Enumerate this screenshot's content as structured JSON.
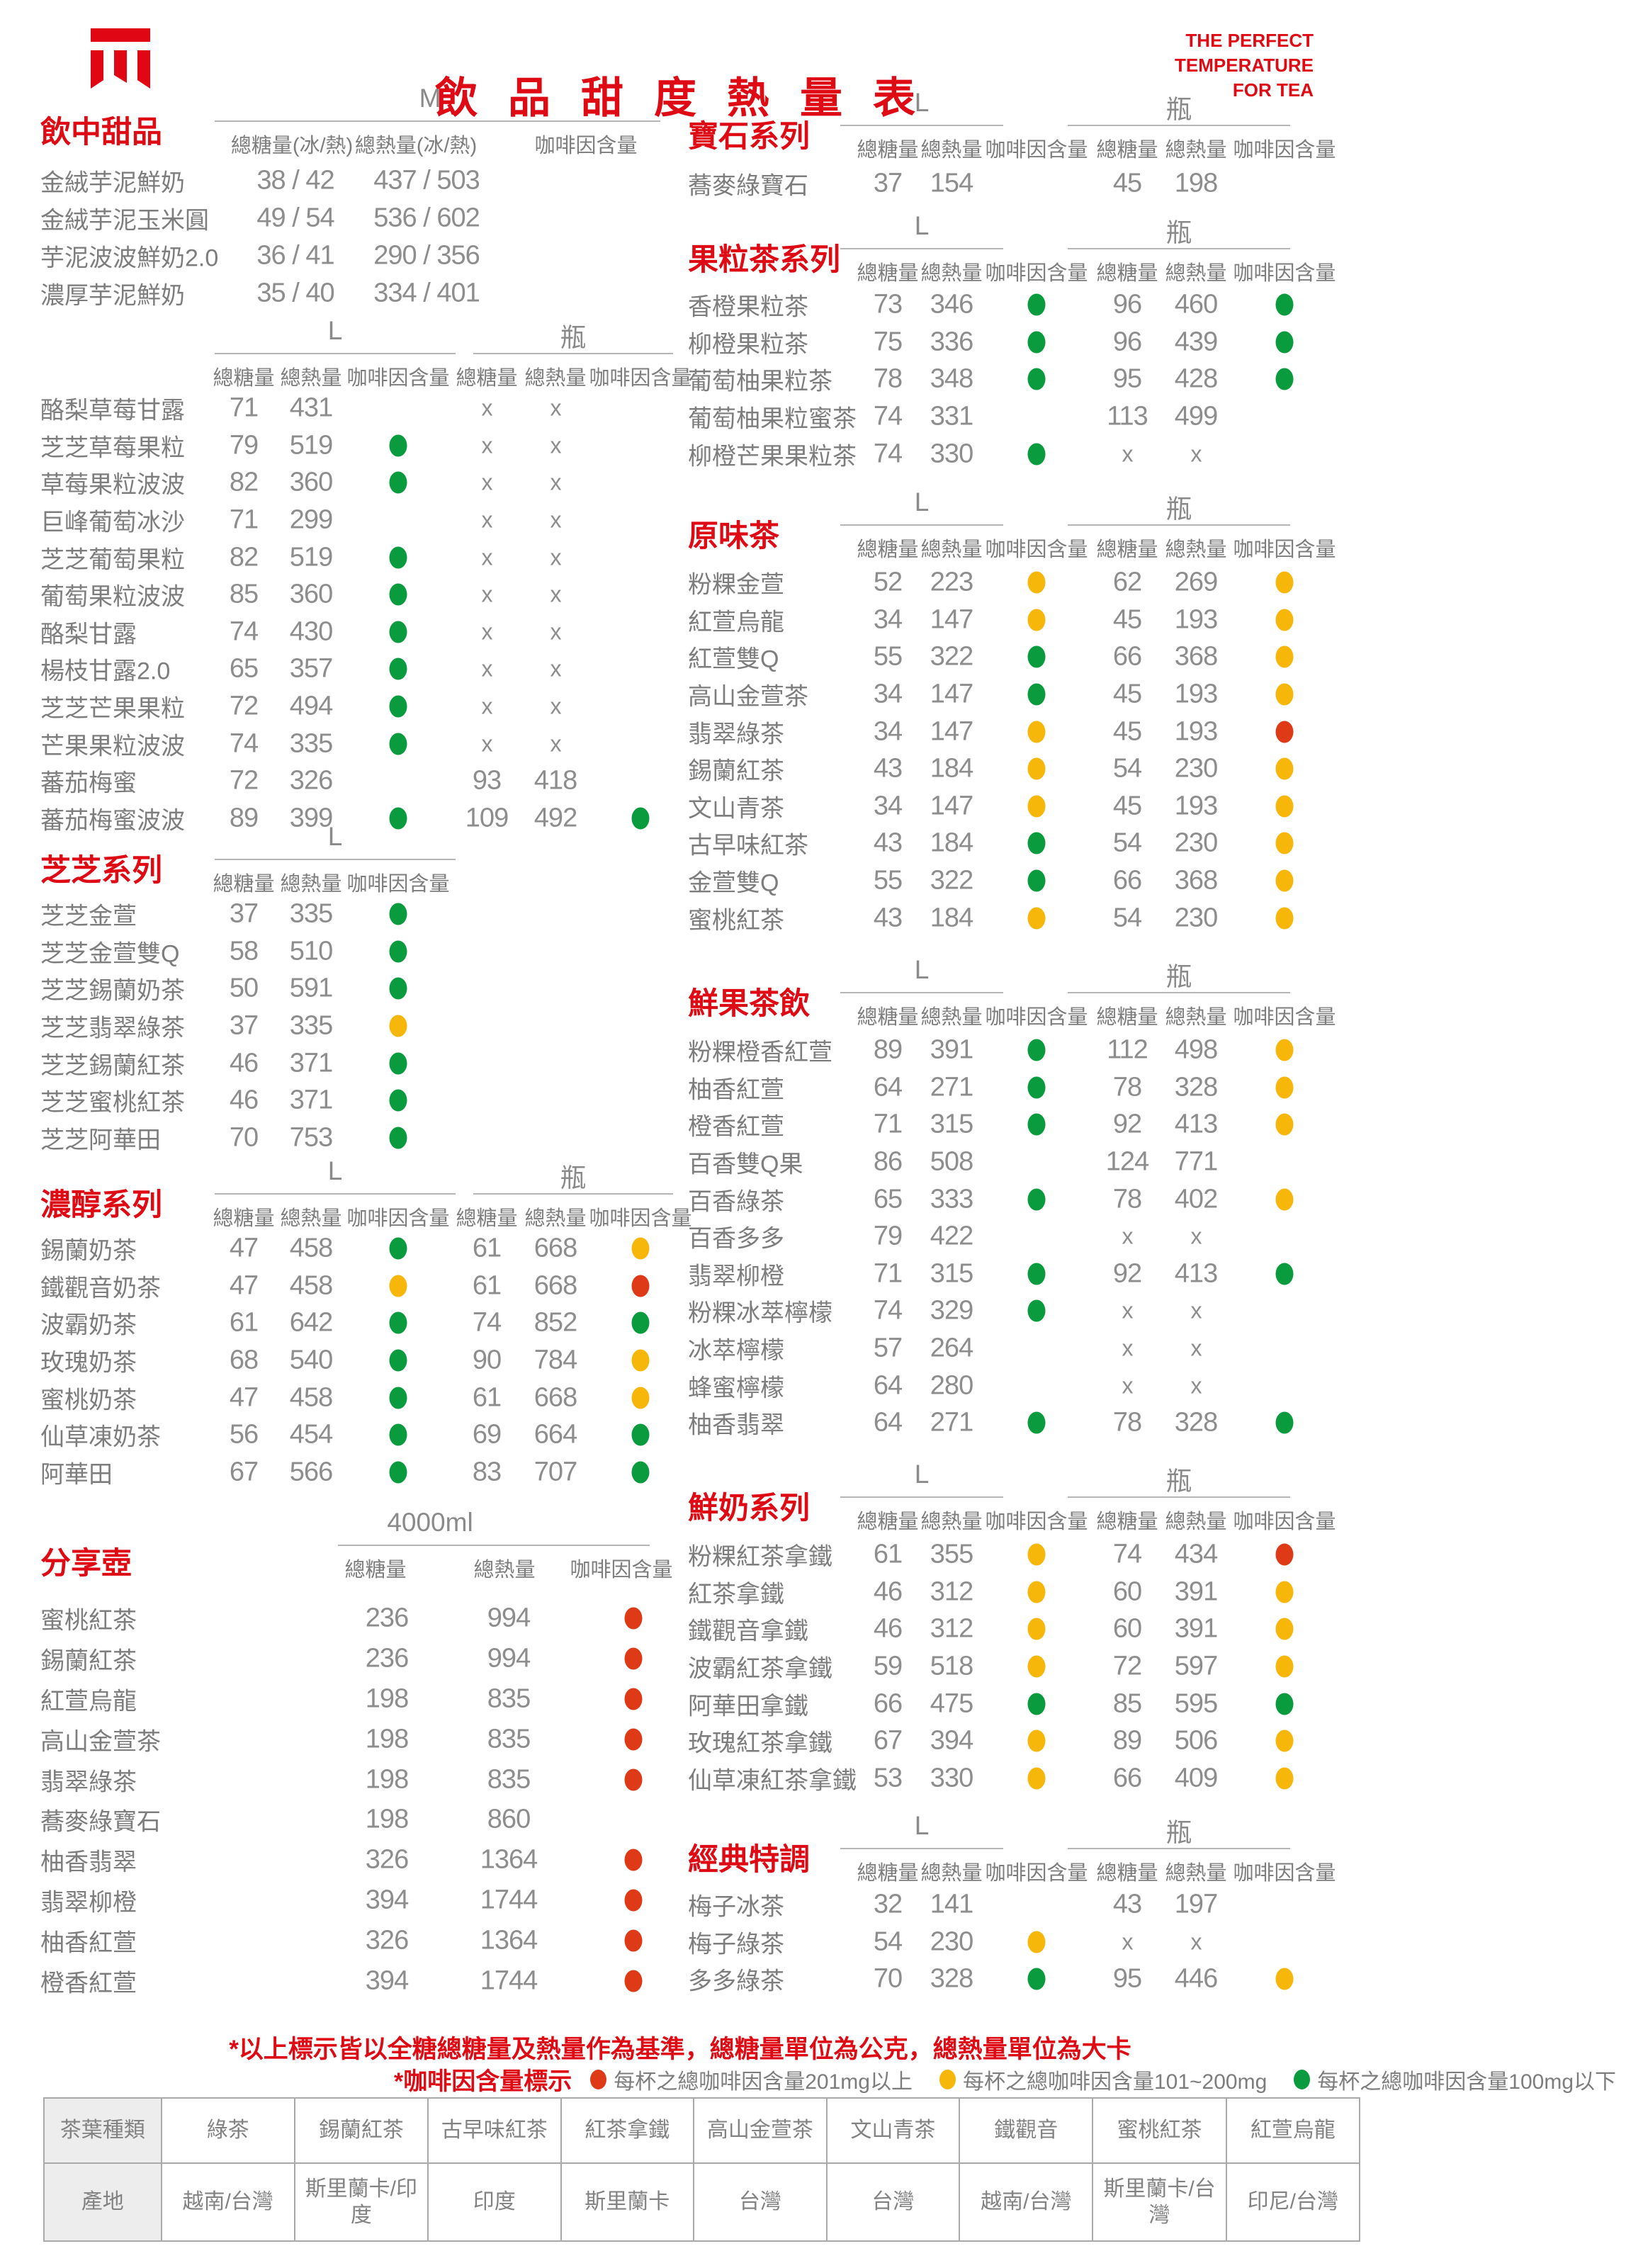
{
  "page": {
    "title": "飲 品 甜 度 熱 量 表",
    "tagline_lines": [
      "THE PERFECT",
      "TEMPERATURE",
      "FOR TEA"
    ],
    "logo_name": "tea-brand-logo"
  },
  "colors": {
    "brand_red": "#de0a14",
    "caffeine_green": "#0a9b3e",
    "caffeine_yellow": "#f6b60a",
    "caffeine_red": "#de3a17",
    "text_gray": "#7d7d7d",
    "value_gray": "#8d8d8d"
  },
  "labels": {
    "sugar": "總糖量",
    "cal": "總熱量",
    "caffeine": "咖啡因含量"
  },
  "left_sections": [
    {
      "id": "drink-desserts",
      "title": "飲中甜品",
      "size_label": "M",
      "columns": [
        "總糖量(冰/熱)",
        "總熱量(冰/熱)",
        "咖啡因含量"
      ],
      "rows": [
        {
          "name": "金絨芋泥鮮奶",
          "cells": [
            "38 / 42",
            "437 / 503",
            ""
          ]
        },
        {
          "name": "金絨芋泥玉米圓",
          "cells": [
            "49 / 54",
            "536 / 602",
            ""
          ]
        },
        {
          "name": "芋泥波波鮮奶2.0",
          "cells": [
            "36 / 41",
            "290 / 356",
            ""
          ]
        },
        {
          "name": "濃厚芋泥鮮奶",
          "cells": [
            "35 / 40",
            "334 / 401",
            ""
          ]
        }
      ]
    },
    {
      "id": "fruit-dew-series",
      "title": "",
      "size_label": "",
      "rows": [
        {
          "name": "酪梨草莓甘露",
          "cells": [
            "71",
            "431",
            "",
            "x",
            "x",
            ""
          ]
        },
        {
          "name": "芝芝草莓果粒",
          "cells": [
            "79",
            "519",
            "dot:green",
            "x",
            "x",
            ""
          ]
        },
        {
          "name": "草莓果粒波波",
          "cells": [
            "82",
            "360",
            "dot:green",
            "x",
            "x",
            ""
          ]
        },
        {
          "name": "巨峰葡萄冰沙",
          "cells": [
            "71",
            "299",
            "",
            "x",
            "x",
            ""
          ]
        },
        {
          "name": "芝芝葡萄果粒",
          "cells": [
            "82",
            "519",
            "dot:green",
            "x",
            "x",
            ""
          ]
        },
        {
          "name": "葡萄果粒波波",
          "cells": [
            "85",
            "360",
            "dot:green",
            "x",
            "x",
            ""
          ]
        },
        {
          "name": "酪梨甘露",
          "cells": [
            "74",
            "430",
            "dot:green",
            "x",
            "x",
            ""
          ]
        },
        {
          "name": "楊枝甘露2.0",
          "cells": [
            "65",
            "357",
            "dot:green",
            "x",
            "x",
            ""
          ]
        },
        {
          "name": "芝芝芒果果粒",
          "cells": [
            "72",
            "494",
            "dot:green",
            "x",
            "x",
            ""
          ]
        },
        {
          "name": "芒果果粒波波",
          "cells": [
            "74",
            "335",
            "dot:green",
            "x",
            "x",
            ""
          ]
        },
        {
          "name": "蕃茄梅蜜",
          "cells": [
            "72",
            "326",
            "",
            "93",
            "418",
            ""
          ]
        },
        {
          "name": "蕃茄梅蜜波波",
          "cells": [
            "89",
            "399",
            "dot:green",
            "109",
            "492",
            "dot:green"
          ]
        }
      ]
    },
    {
      "id": "cheese-series",
      "title": "芝芝系列",
      "size_label": "L",
      "rows": [
        {
          "name": "芝芝金萱",
          "cells": [
            "37",
            "335",
            "dot:green"
          ]
        },
        {
          "name": "芝芝金萱雙Q",
          "cells": [
            "58",
            "510",
            "dot:green"
          ]
        },
        {
          "name": "芝芝錫蘭奶茶",
          "cells": [
            "50",
            "591",
            "dot:green"
          ]
        },
        {
          "name": "芝芝翡翠綠茶",
          "cells": [
            "37",
            "335",
            "dot:yellow"
          ]
        },
        {
          "name": "芝芝錫蘭紅茶",
          "cells": [
            "46",
            "371",
            "dot:green"
          ]
        },
        {
          "name": "芝芝蜜桃紅茶",
          "cells": [
            "46",
            "371",
            "dot:green"
          ]
        },
        {
          "name": "芝芝阿華田",
          "cells": [
            "70",
            "753",
            "dot:green"
          ]
        }
      ]
    },
    {
      "id": "rich-milk-tea-series",
      "title": "濃醇系列",
      "size_label": "",
      "rows": [
        {
          "name": "錫蘭奶茶",
          "cells": [
            "47",
            "458",
            "dot:green",
            "61",
            "668",
            "dot:yellow"
          ]
        },
        {
          "name": "鐵觀音奶茶",
          "cells": [
            "47",
            "458",
            "dot:yellow",
            "61",
            "668",
            "dot:red"
          ]
        },
        {
          "name": "波霸奶茶",
          "cells": [
            "61",
            "642",
            "dot:green",
            "74",
            "852",
            "dot:green"
          ]
        },
        {
          "name": "玫瑰奶茶",
          "cells": [
            "68",
            "540",
            "dot:green",
            "90",
            "784",
            "dot:yellow"
          ]
        },
        {
          "name": "蜜桃奶茶",
          "cells": [
            "47",
            "458",
            "dot:green",
            "61",
            "668",
            "dot:yellow"
          ]
        },
        {
          "name": "仙草凍奶茶",
          "cells": [
            "56",
            "454",
            "dot:green",
            "69",
            "664",
            "dot:green"
          ]
        },
        {
          "name": "阿華田",
          "cells": [
            "67",
            "566",
            "dot:green",
            "83",
            "707",
            "dot:green"
          ]
        }
      ]
    },
    {
      "id": "sharing-pot",
      "title": "分享壺",
      "size_label": "4000ml",
      "rows": [
        {
          "name": "蜜桃紅茶",
          "cells": [
            "236",
            "994",
            "dot:red"
          ]
        },
        {
          "name": "錫蘭紅茶",
          "cells": [
            "236",
            "994",
            "dot:red"
          ]
        },
        {
          "name": "紅萱烏龍",
          "cells": [
            "198",
            "835",
            "dot:red"
          ]
        },
        {
          "name": "高山金萱茶",
          "cells": [
            "198",
            "835",
            "dot:red"
          ]
        },
        {
          "name": "翡翠綠茶",
          "cells": [
            "198",
            "835",
            "dot:red"
          ]
        },
        {
          "name": "蕎麥綠寶石",
          "cells": [
            "198",
            "860",
            ""
          ]
        },
        {
          "name": "柚香翡翠",
          "cells": [
            "326",
            "1364",
            "dot:red"
          ]
        },
        {
          "name": "翡翠柳橙",
          "cells": [
            "394",
            "1744",
            "dot:red"
          ]
        },
        {
          "name": "柚香紅萱",
          "cells": [
            "326",
            "1364",
            "dot:red"
          ]
        },
        {
          "name": "橙香紅萱",
          "cells": [
            "394",
            "1744",
            "dot:red"
          ]
        }
      ]
    }
  ],
  "right_sections": [
    {
      "id": "gem-series",
      "title": "寶石系列",
      "size_label": "",
      "rows": [
        {
          "name": "蕎麥綠寶石",
          "cells": [
            "37",
            "154",
            "",
            "45",
            "198",
            ""
          ]
        }
      ]
    },
    {
      "id": "fruit-bits-tea-series",
      "title": "果粒茶系列",
      "size_label": "",
      "rows": [
        {
          "name": "香橙果粒茶",
          "cells": [
            "73",
            "346",
            "dot:green",
            "96",
            "460",
            "dot:green"
          ]
        },
        {
          "name": "柳橙果粒茶",
          "cells": [
            "75",
            "336",
            "dot:green",
            "96",
            "439",
            "dot:green"
          ]
        },
        {
          "name": "葡萄柚果粒茶",
          "cells": [
            "78",
            "348",
            "dot:green",
            "95",
            "428",
            "dot:green"
          ]
        },
        {
          "name": "葡萄柚果粒蜜茶",
          "cells": [
            "74",
            "331",
            "",
            "113",
            "499",
            ""
          ]
        },
        {
          "name": "柳橙芒果果粒茶",
          "cells": [
            "74",
            "330",
            "dot:green",
            "x",
            "x",
            ""
          ]
        }
      ]
    },
    {
      "id": "original-tea",
      "title": "原味茶",
      "size_label": "",
      "rows": [
        {
          "name": "粉粿金萱",
          "cells": [
            "52",
            "223",
            "dot:yellow",
            "62",
            "269",
            "dot:yellow"
          ]
        },
        {
          "name": "紅萱烏龍",
          "cells": [
            "34",
            "147",
            "dot:yellow",
            "45",
            "193",
            "dot:yellow"
          ]
        },
        {
          "name": "紅萱雙Q",
          "cells": [
            "55",
            "322",
            "dot:green",
            "66",
            "368",
            "dot:yellow"
          ]
        },
        {
          "name": "高山金萱茶",
          "cells": [
            "34",
            "147",
            "dot:green",
            "45",
            "193",
            "dot:yellow"
          ]
        },
        {
          "name": "翡翠綠茶",
          "cells": [
            "34",
            "147",
            "dot:yellow",
            "45",
            "193",
            "dot:red"
          ]
        },
        {
          "name": "錫蘭紅茶",
          "cells": [
            "43",
            "184",
            "dot:yellow",
            "54",
            "230",
            "dot:yellow"
          ]
        },
        {
          "name": "文山青茶",
          "cells": [
            "34",
            "147",
            "dot:yellow",
            "45",
            "193",
            "dot:yellow"
          ]
        },
        {
          "name": "古早味紅茶",
          "cells": [
            "43",
            "184",
            "dot:green",
            "54",
            "230",
            "dot:yellow"
          ]
        },
        {
          "name": "金萱雙Q",
          "cells": [
            "55",
            "322",
            "dot:green",
            "66",
            "368",
            "dot:yellow"
          ]
        },
        {
          "name": "蜜桃紅茶",
          "cells": [
            "43",
            "184",
            "dot:yellow",
            "54",
            "230",
            "dot:yellow"
          ]
        }
      ]
    },
    {
      "id": "fresh-fruit-tea",
      "title": "鮮果茶飲",
      "size_label": "",
      "rows": [
        {
          "name": "粉粿橙香紅萱",
          "cells": [
            "89",
            "391",
            "dot:green",
            "112",
            "498",
            "dot:yellow"
          ]
        },
        {
          "name": "柚香紅萱",
          "cells": [
            "64",
            "271",
            "dot:green",
            "78",
            "328",
            "dot:yellow"
          ]
        },
        {
          "name": "橙香紅萱",
          "cells": [
            "71",
            "315",
            "dot:green",
            "92",
            "413",
            "dot:yellow"
          ]
        },
        {
          "name": "百香雙Q果",
          "cells": [
            "86",
            "508",
            "",
            "124",
            "771",
            ""
          ]
        },
        {
          "name": "百香綠茶",
          "cells": [
            "65",
            "333",
            "dot:green",
            "78",
            "402",
            "dot:yellow"
          ]
        },
        {
          "name": "百香多多",
          "cells": [
            "79",
            "422",
            "",
            "x",
            "x",
            ""
          ]
        },
        {
          "name": "翡翠柳橙",
          "cells": [
            "71",
            "315",
            "dot:green",
            "92",
            "413",
            "dot:green"
          ]
        },
        {
          "name": "粉粿冰萃檸檬",
          "cells": [
            "74",
            "329",
            "dot:green",
            "x",
            "x",
            ""
          ]
        },
        {
          "name": "冰萃檸檬",
          "cells": [
            "57",
            "264",
            "",
            "x",
            "x",
            ""
          ]
        },
        {
          "name": "蜂蜜檸檬",
          "cells": [
            "64",
            "280",
            "",
            "x",
            "x",
            ""
          ]
        },
        {
          "name": "柚香翡翠",
          "cells": [
            "64",
            "271",
            "dot:green",
            "78",
            "328",
            "dot:green"
          ]
        }
      ]
    },
    {
      "id": "fresh-milk-series",
      "title": "鮮奶系列",
      "size_label": "",
      "rows": [
        {
          "name": "粉粿紅茶拿鐵",
          "cells": [
            "61",
            "355",
            "dot:yellow",
            "74",
            "434",
            "dot:red"
          ]
        },
        {
          "name": "紅茶拿鐵",
          "cells": [
            "46",
            "312",
            "dot:yellow",
            "60",
            "391",
            "dot:yellow"
          ]
        },
        {
          "name": "鐵觀音拿鐵",
          "cells": [
            "46",
            "312",
            "dot:yellow",
            "60",
            "391",
            "dot:yellow"
          ]
        },
        {
          "name": "波霸紅茶拿鐵",
          "cells": [
            "59",
            "518",
            "dot:yellow",
            "72",
            "597",
            "dot:yellow"
          ]
        },
        {
          "name": "阿華田拿鐵",
          "cells": [
            "66",
            "475",
            "dot:green",
            "85",
            "595",
            "dot:green"
          ]
        },
        {
          "name": "玫瑰紅茶拿鐵",
          "cells": [
            "67",
            "394",
            "dot:yellow",
            "89",
            "506",
            "dot:yellow"
          ]
        },
        {
          "name": "仙草凍紅茶拿鐵",
          "cells": [
            "53",
            "330",
            "dot:yellow",
            "66",
            "409",
            "dot:yellow"
          ]
        }
      ]
    },
    {
      "id": "classic-specials",
      "title": "經典特調",
      "size_label": "",
      "rows": [
        {
          "name": "梅子冰茶",
          "cells": [
            "32",
            "141",
            "",
            "43",
            "197",
            ""
          ]
        },
        {
          "name": "梅子綠茶",
          "cells": [
            "54",
            "230",
            "dot:yellow",
            "x",
            "x",
            ""
          ]
        },
        {
          "name": "多多綠茶",
          "cells": [
            "70",
            "328",
            "dot:green",
            "95",
            "446",
            "dot:yellow"
          ]
        }
      ]
    }
  ],
  "size_headers": {
    "large": "L",
    "bottle": "瓶"
  },
  "footnotes": {
    "line1": "*以上標示皆以全糖總糖量及熱量作為基準，總糖量單位為公克，總熱量單位為大卡",
    "legend_label": "*咖啡因含量標示",
    "legend": [
      {
        "color": "red",
        "text": "每杯之總咖啡因含量201mg以上"
      },
      {
        "color": "yellow",
        "text": "每杯之總咖啡因含量101~200mg"
      },
      {
        "color": "green",
        "text": "每杯之總咖啡因含量100mg以下"
      }
    ]
  },
  "origin_table": {
    "rows": [
      [
        "茶葉種類",
        "綠茶",
        "錫蘭紅茶",
        "古早味紅茶",
        "紅茶拿鐵",
        "高山金萱茶",
        "文山青茶",
        "鐵觀音",
        "蜜桃紅茶",
        "紅萱烏龍"
      ],
      [
        "產地",
        "越南/台灣",
        "斯里蘭卡/印度",
        "印度",
        "斯里蘭卡",
        "台灣",
        "台灣",
        "越南/台灣",
        "斯里蘭卡/台灣",
        "印尼/台灣"
      ]
    ]
  }
}
